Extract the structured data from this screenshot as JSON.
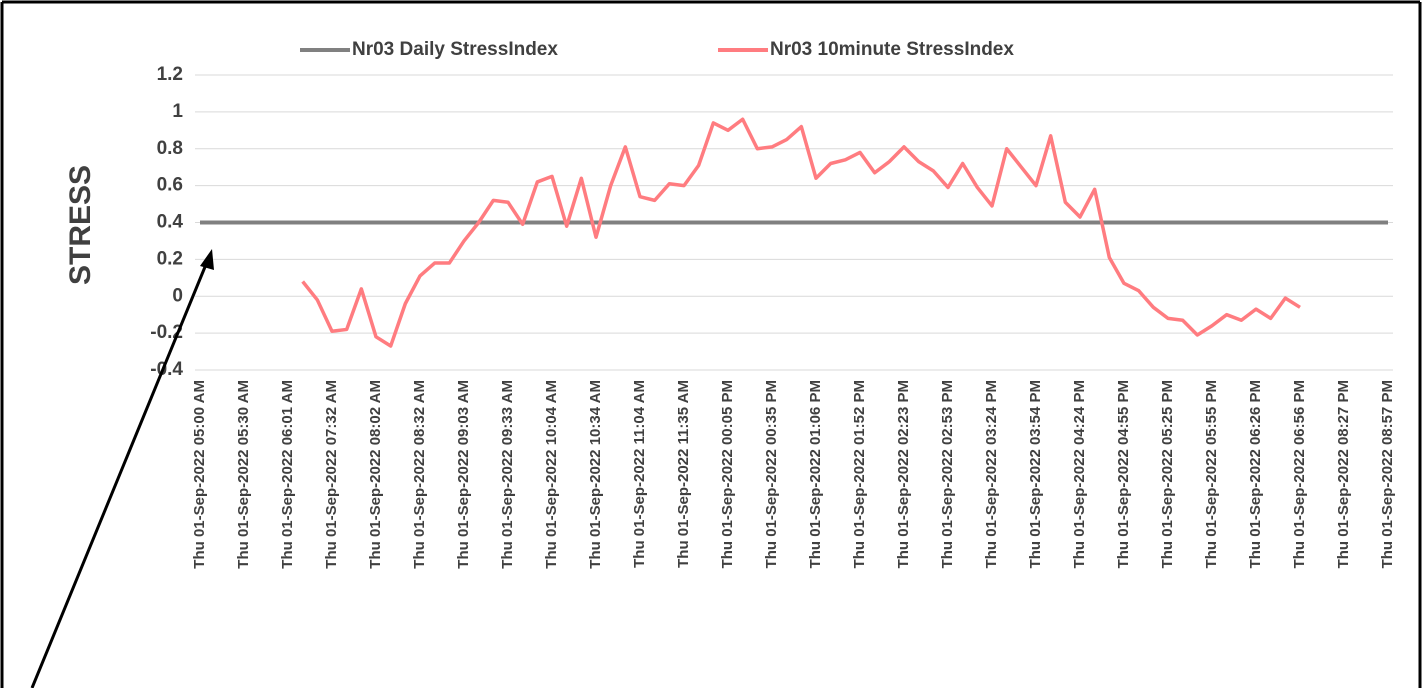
{
  "chart_data": {
    "type": "line",
    "y_label": "STRESS",
    "categories": [
      "Thu 01-Sep-2022 05:00 AM",
      null,
      null,
      "Thu 01-Sep-2022 05:30 AM",
      null,
      null,
      "Thu 01-Sep-2022 06:01 AM",
      null,
      null,
      "Thu 01-Sep-2022 07:32 AM",
      null,
      null,
      "Thu 01-Sep-2022 08:02 AM",
      null,
      null,
      "Thu 01-Sep-2022 08:32 AM",
      null,
      null,
      "Thu 01-Sep-2022 09:03 AM",
      null,
      null,
      "Thu 01-Sep-2022 09:33 AM",
      null,
      null,
      "Thu 01-Sep-2022 10:04 AM",
      null,
      null,
      "Thu 01-Sep-2022 10:34 AM",
      null,
      null,
      "Thu 01-Sep-2022 11:04 AM",
      null,
      null,
      "Thu 01-Sep-2022 11:35 AM",
      null,
      null,
      "Thu 01-Sep-2022 00:05 PM",
      null,
      null,
      "Thu 01-Sep-2022 00:35 PM",
      null,
      null,
      "Thu 01-Sep-2022 01:06 PM",
      null,
      null,
      "Thu 01-Sep-2022 01:52 PM",
      null,
      null,
      "Thu 01-Sep-2022 02:23 PM",
      null,
      null,
      "Thu 01-Sep-2022 02:53 PM",
      null,
      null,
      "Thu 01-Sep-2022 03:24 PM",
      null,
      null,
      "Thu 01-Sep-2022 03:54 PM",
      null,
      null,
      "Thu 01-Sep-2022 04:24 PM",
      null,
      null,
      "Thu 01-Sep-2022 04:55 PM",
      null,
      null,
      "Thu 01-Sep-2022 05:25 PM",
      null,
      null,
      "Thu 01-Sep-2022 05:55 PM",
      null,
      null,
      "Thu 01-Sep-2022 06:26 PM",
      null,
      null,
      "Thu 01-Sep-2022 06:56 PM",
      null,
      null,
      "Thu 01-Sep-2022 08:27 PM",
      null,
      null,
      "Thu 01-Sep-2022 08:57 PM"
    ],
    "series": [
      {
        "name": "Nr03 Daily StressIndex",
        "color": "#808080",
        "values": [
          0.4,
          0.4,
          0.4,
          0.4,
          0.4,
          0.4,
          0.4,
          0.4,
          0.4,
          0.4,
          0.4,
          0.4,
          0.4,
          0.4,
          0.4,
          0.4,
          0.4,
          0.4,
          0.4,
          0.4,
          0.4,
          0.4,
          0.4,
          0.4,
          0.4,
          0.4,
          0.4,
          0.4,
          0.4,
          0.4,
          0.4,
          0.4,
          0.4,
          0.4,
          0.4,
          0.4,
          0.4,
          0.4,
          0.4,
          0.4,
          0.4,
          0.4,
          0.4,
          0.4,
          0.4,
          0.4,
          0.4,
          0.4,
          0.4,
          0.4,
          0.4,
          0.4,
          0.4,
          0.4,
          0.4,
          0.4,
          0.4,
          0.4,
          0.4,
          0.4,
          0.4,
          0.4,
          0.4,
          0.4,
          0.4,
          0.4,
          0.4,
          0.4,
          0.4,
          0.4,
          0.4,
          0.4,
          0.4,
          0.4,
          0.4,
          0.4,
          0.4,
          0.4,
          0.4,
          0.4,
          0.4,
          0.4
        ]
      },
      {
        "name": "Nr03 10minute StressIndex",
        "color": "#ff7c80",
        "values": [
          null,
          null,
          null,
          null,
          null,
          null,
          null,
          0.08,
          -0.02,
          -0.19,
          -0.18,
          0.04,
          -0.22,
          -0.27,
          -0.04,
          0.11,
          0.18,
          0.18,
          0.3,
          0.4,
          0.52,
          0.51,
          0.39,
          0.62,
          0.65,
          0.38,
          0.64,
          0.32,
          0.6,
          0.81,
          0.54,
          0.52,
          0.61,
          0.6,
          0.71,
          0.94,
          0.9,
          0.96,
          0.8,
          0.81,
          0.85,
          0.92,
          0.64,
          0.72,
          0.74,
          0.78,
          0.67,
          0.73,
          0.81,
          0.73,
          0.68,
          0.59,
          0.72,
          0.59,
          0.49,
          0.8,
          0.7,
          0.6,
          0.87,
          0.51,
          0.43,
          0.58,
          0.21,
          0.07,
          0.03,
          -0.06,
          -0.12,
          -0.13,
          -0.21,
          -0.16,
          -0.1,
          -0.13,
          -0.07,
          -0.12,
          -0.01,
          -0.06,
          null,
          null,
          null,
          null,
          null,
          null
        ]
      }
    ],
    "ylim": [
      -0.4,
      1.2
    ],
    "yticks": [
      -0.4,
      -0.2,
      0,
      0.2,
      0.4,
      0.6,
      0.8,
      1,
      1.2
    ],
    "grid": true,
    "legend": "top"
  }
}
